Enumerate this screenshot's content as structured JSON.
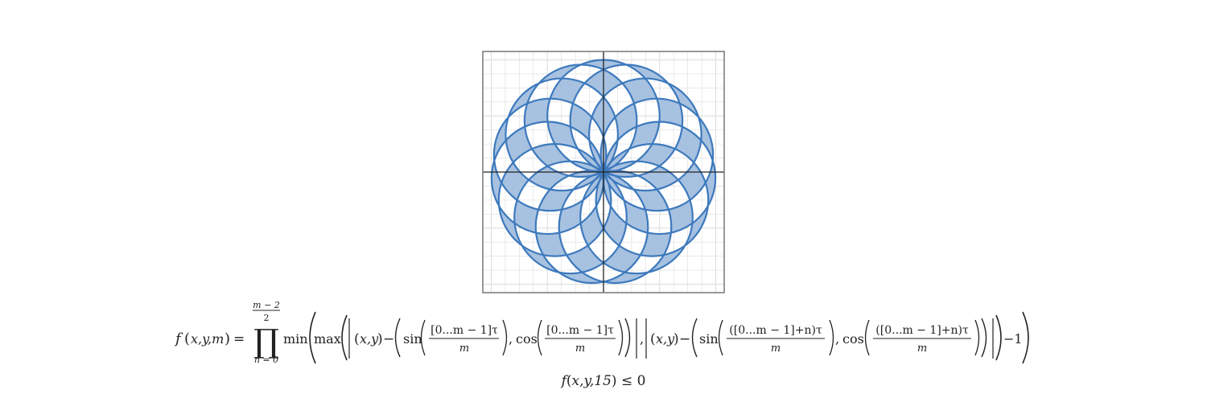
{
  "graph": {
    "accent_color": "#3d79bd",
    "fill_color": "#a7c1e0",
    "grid_color": "#dcdcdc",
    "axis_color": "#222222",
    "frame_color": "#777777",
    "petal_count": 15,
    "x_range": [
      -2.15,
      2.15
    ],
    "y_range": [
      -2.15,
      2.15
    ]
  },
  "formula": {
    "lhs": "f",
    "lhs_args": "x,y,m",
    "equals": "=",
    "prod_upper_num": "m − 2",
    "prod_upper_den": "2",
    "prod_symbol": "∏",
    "prod_lower": "n = 0",
    "min_fn": "min",
    "max_fn": "max",
    "xy": "x,y",
    "minus": "−",
    "sin_fn": "sin",
    "cos_fn": "cos",
    "frac1_num": "[0...m − 1]τ",
    "frac_den": "m",
    "frac2_num": "([0...m − 1]+n)τ",
    "comma": ",",
    "minus_one": "−1"
  },
  "inequality": {
    "fn": "f",
    "args": "x,y,15",
    "op": "≤ 0"
  }
}
